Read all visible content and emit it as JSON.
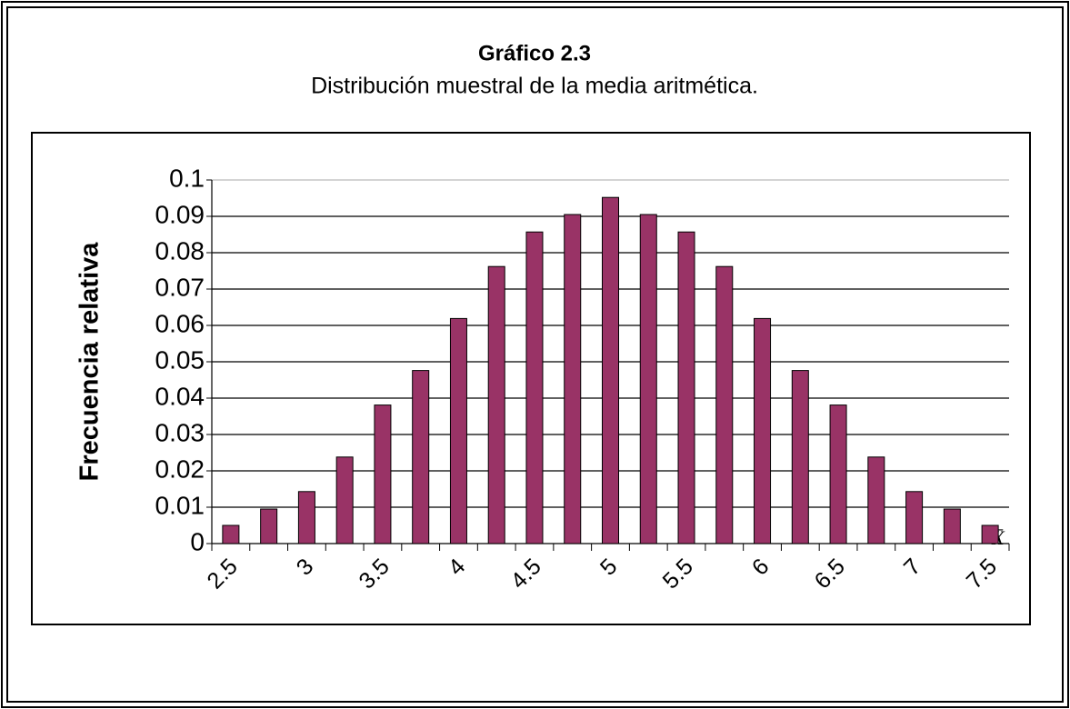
{
  "chart_data": {
    "type": "bar",
    "title": "Gráfico 2.3",
    "subtitle": "Distribución muestral de la media aritmética.",
    "y_label": "Frecuencia relativa",
    "x_label": "X̄",
    "categories": [
      "2.5",
      null,
      "3",
      null,
      "3.5",
      null,
      "4",
      null,
      "4.5",
      null,
      "5",
      null,
      "5.5",
      null,
      "6",
      null,
      "6.5",
      null,
      "7",
      null,
      "7.5"
    ],
    "values": [
      0.005,
      0.0095,
      0.0143,
      0.0238,
      0.0381,
      0.0476,
      0.0619,
      0.0762,
      0.0857,
      0.0905,
      0.0952,
      0.0905,
      0.0857,
      0.0762,
      0.0619,
      0.0476,
      0.0381,
      0.0238,
      0.0143,
      0.0095,
      0.005
    ],
    "color": "#993366",
    "ylim": [
      0,
      0.1
    ],
    "yticks": [
      0,
      0.01,
      0.02,
      0.03,
      0.04,
      0.05,
      0.06,
      0.07,
      0.08,
      0.09,
      0.1
    ],
    "grid": true
  }
}
